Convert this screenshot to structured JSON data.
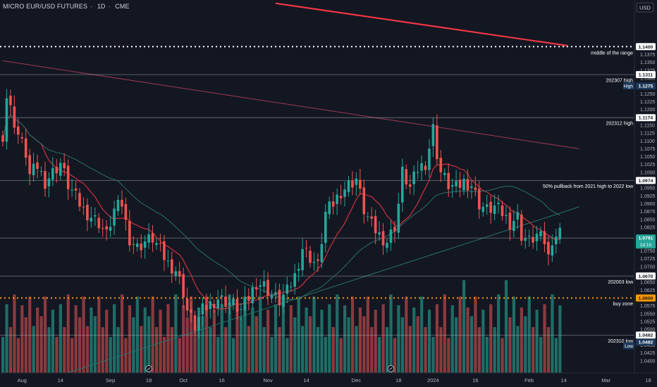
{
  "header": {
    "symbol": "MICRO EUR/USD FUTURES",
    "interval": "1D",
    "exchange": "CME"
  },
  "axis": {
    "currency_button": "USD"
  },
  "chart_data": {
    "type": "candlestick",
    "y_range": [
      1.0375,
      1.1535
    ],
    "price_ticks": [
      "1.1375",
      "1.1350",
      "1.1325",
      "1.1300",
      "1.1250",
      "1.1225",
      "1.1200",
      "1.1150",
      "1.1125",
      "1.1100",
      "1.1075",
      "1.1050",
      "1.1025",
      "1.1000",
      "1.0950",
      "1.0925",
      "1.0900",
      "1.0875",
      "1.0850",
      "1.0825",
      "1.0750",
      "1.0725",
      "1.0700",
      "1.0650",
      "1.0625",
      "1.0600",
      "1.0575",
      "1.0550",
      "1.0525",
      "1.0500",
      "1.0450",
      "1.0425",
      "1.0400"
    ],
    "x_labels": [
      {
        "label": "Aug",
        "i": 5
      },
      {
        "label": "14",
        "i": 15
      },
      {
        "label": "Sep",
        "i": 28
      },
      {
        "label": "18",
        "i": 38
      },
      {
        "label": "Oct",
        "i": 47
      },
      {
        "label": "16",
        "i": 57
      },
      {
        "label": "Nov",
        "i": 69
      },
      {
        "label": "14",
        "i": 79
      },
      {
        "label": "Dec",
        "i": 92
      },
      {
        "label": "18",
        "i": 103
      },
      {
        "label": "2024",
        "i": 112
      },
      {
        "label": "16",
        "i": 123
      },
      {
        "label": "Feb",
        "i": 137
      },
      {
        "label": "14",
        "i": 146
      },
      {
        "label": "Mar",
        "i": 157
      },
      {
        "label": "18",
        "i": 168
      }
    ],
    "candle_anchors": [
      [
        0,
        1.112
      ],
      [
        1,
        1.124
      ],
      [
        2,
        1.12
      ],
      [
        4,
        1.112
      ],
      [
        6,
        1.106
      ],
      [
        7,
        1.099
      ],
      [
        9,
        1.102
      ],
      [
        11,
        1.097
      ],
      [
        13,
        1.1
      ],
      [
        15,
        1.103
      ],
      [
        17,
        1.096
      ],
      [
        19,
        1.092
      ],
      [
        21,
        1.088
      ],
      [
        23,
        1.086
      ],
      [
        25,
        1.084
      ],
      [
        27,
        1.08
      ],
      [
        29,
        1.088
      ],
      [
        31,
        1.09
      ],
      [
        32,
        1.084
      ],
      [
        33,
        1.079
      ],
      [
        35,
        1.076
      ],
      [
        37,
        1.078
      ],
      [
        39,
        1.079
      ],
      [
        41,
        1.075
      ],
      [
        43,
        1.071
      ],
      [
        45,
        1.069
      ],
      [
        47,
        1.062
      ],
      [
        48,
        1.056
      ],
      [
        50,
        1.051
      ],
      [
        52,
        1.056
      ],
      [
        54,
        1.058
      ],
      [
        56,
        1.06
      ],
      [
        58,
        1.059
      ],
      [
        60,
        1.058
      ],
      [
        62,
        1.056
      ],
      [
        64,
        1.06
      ],
      [
        66,
        1.065
      ],
      [
        68,
        1.064
      ],
      [
        70,
        1.061
      ],
      [
        72,
        1.059
      ],
      [
        74,
        1.062
      ],
      [
        76,
        1.067
      ],
      [
        78,
        1.076
      ],
      [
        80,
        1.073
      ],
      [
        82,
        1.07
      ],
      [
        84,
        1.087
      ],
      [
        86,
        1.09
      ],
      [
        88,
        1.094
      ],
      [
        90,
        1.096
      ],
      [
        92,
        1.098
      ],
      [
        94,
        1.088
      ],
      [
        96,
        1.083
      ],
      [
        98,
        1.08
      ],
      [
        100,
        1.078
      ],
      [
        102,
        1.083
      ],
      [
        103,
        1.09
      ],
      [
        104,
        1.1
      ],
      [
        106,
        1.095
      ],
      [
        108,
        1.101
      ],
      [
        110,
        1.103
      ],
      [
        111,
        1.108
      ],
      [
        112,
        1.114
      ],
      [
        113,
        1.106
      ],
      [
        114,
        1.1
      ],
      [
        116,
        1.096
      ],
      [
        118,
        1.095
      ],
      [
        120,
        1.097
      ],
      [
        122,
        1.096
      ],
      [
        124,
        1.09
      ],
      [
        126,
        1.088
      ],
      [
        128,
        1.089
      ],
      [
        130,
        1.087
      ],
      [
        132,
        1.084
      ],
      [
        134,
        1.086
      ],
      [
        135,
        1.08
      ],
      [
        137,
        1.078
      ],
      [
        139,
        1.08
      ],
      [
        141,
        1.078
      ],
      [
        142,
        1.073
      ],
      [
        143,
        1.079
      ],
      [
        144,
        1.08
      ],
      [
        145,
        1.081
      ]
    ],
    "volume_pattern": [
      0.33,
      0.55,
      0.4,
      0.62,
      0.28,
      0.5,
      0.45,
      0.7,
      0.35,
      0.58,
      0.42,
      0.66,
      0.3,
      0.52
    ],
    "volume_max_height": 155,
    "candle_count": 146,
    "price_tags": [
      {
        "value": 1.14,
        "text": "1.1400",
        "kind": "line"
      },
      {
        "value": 1.1311,
        "text": "1.1311",
        "kind": "line"
      },
      {
        "value": 1.1275,
        "text": "1.1275",
        "kind": "high"
      },
      {
        "value": 1.1174,
        "text": "1.1174",
        "kind": "line"
      },
      {
        "value": 1.0974,
        "text": "1.0974",
        "kind": "line"
      },
      {
        "value": 1.0791,
        "text": "1.0791",
        "kind": "last",
        "sub": "1d 1h"
      },
      {
        "value": 1.067,
        "text": "1.0670",
        "kind": "line"
      },
      {
        "value": 1.06,
        "text": "1.0600",
        "kind": "orange"
      },
      {
        "value": 1.0482,
        "text": "1.0482",
        "kind": "line"
      },
      {
        "value": 1.0482,
        "text": "1.0482",
        "kind": "low"
      }
    ],
    "annotations": [
      {
        "text": "middle of the range",
        "value": 1.138
      },
      {
        "text": "202307 high",
        "value": 1.1293
      },
      {
        "text": "High",
        "value": 1.1275,
        "badge": true
      },
      {
        "text": "202312 high",
        "value": 1.1156
      },
      {
        "text": "50% pullback from 2021 high to 2022 low",
        "value": 1.0956
      },
      {
        "text": "202003 low",
        "value": 1.0652
      },
      {
        "text": "buy zone",
        "value": 1.0582
      },
      {
        "text": "202310 low",
        "value": 1.0464
      },
      {
        "text": "Low",
        "value": 1.0448,
        "badge": true
      }
    ],
    "horizontal_levels": [
      {
        "value": 1.14,
        "style": "dotted",
        "color": "#ffffff"
      },
      {
        "value": 1.1311,
        "style": "solid",
        "color": "#b2b5be"
      },
      {
        "value": 1.1174,
        "style": "solid",
        "color": "#b2b5be"
      },
      {
        "value": 1.0974,
        "style": "solid",
        "color": "#b2b5be"
      },
      {
        "value": 1.0791,
        "style": "solid",
        "color": "#b2b5be"
      },
      {
        "value": 1.067,
        "style": "solid",
        "color": "#b2b5be"
      },
      {
        "value": 1.06,
        "style": "dotted",
        "color": "#ff9800"
      },
      {
        "value": 1.0482,
        "style": "solid",
        "color": "#b2b5be"
      }
    ],
    "trendlines": [
      {
        "from": [
          71,
          1.1538
        ],
        "to": [
          147,
          1.1403
        ],
        "color": "#f23645",
        "width": 2.2
      },
      {
        "from": [
          0,
          1.1355
        ],
        "to": [
          150,
          1.1075
        ],
        "color": "#9c3a52",
        "width": 1
      },
      {
        "from": [
          0,
          1.0295
        ],
        "to": [
          150,
          1.089
        ],
        "color": "#2a6f6a",
        "width": 1
      }
    ],
    "colors": {
      "up": "#26a69a",
      "down": "#ef5350",
      "volume_up": "#1f6d66",
      "volume_down": "#8b3a3f",
      "ma_red": "#f23645",
      "ma_teal": "#2a6f6a",
      "background": "#131722",
      "grid_text": "#b2b5be",
      "orange": "#ff9800"
    },
    "grid": false,
    "legend": "none"
  }
}
